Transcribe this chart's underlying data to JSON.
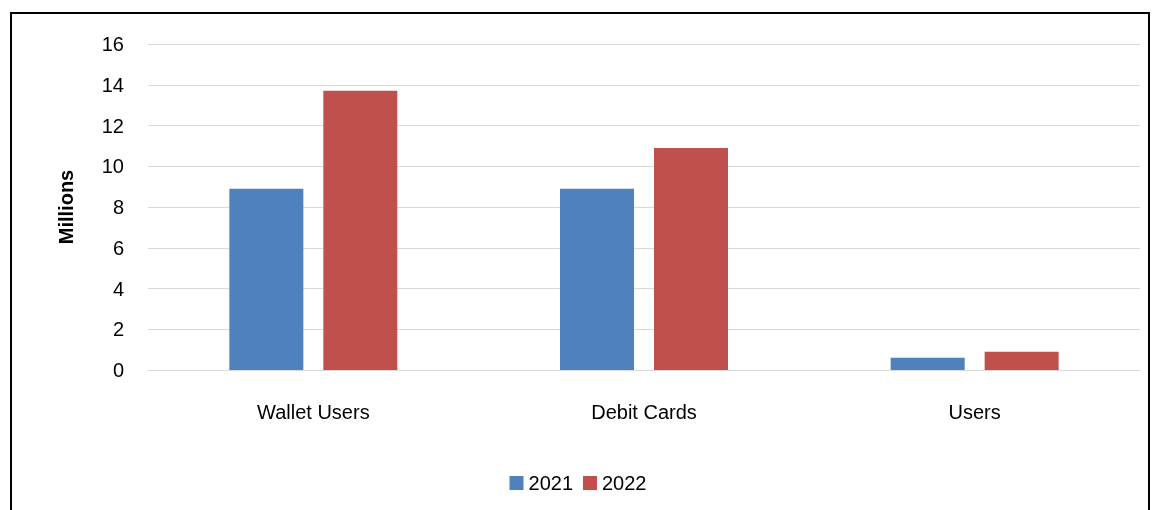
{
  "chart_data": {
    "type": "bar",
    "ylabel": "Millions",
    "categories": [
      "Wallet Users",
      "Debit Cards",
      "Users"
    ],
    "series": [
      {
        "name": "2021",
        "color": "#4f81bd",
        "values": [
          8.9,
          8.9,
          0.6
        ]
      },
      {
        "name": "2022",
        "color": "#c0504d",
        "values": [
          13.7,
          10.9,
          0.9
        ]
      }
    ],
    "ylim": [
      0,
      16
    ],
    "yticks": [
      0,
      2,
      4,
      6,
      8,
      10,
      12,
      14,
      16
    ],
    "grid": "y",
    "legend": "bottom"
  }
}
